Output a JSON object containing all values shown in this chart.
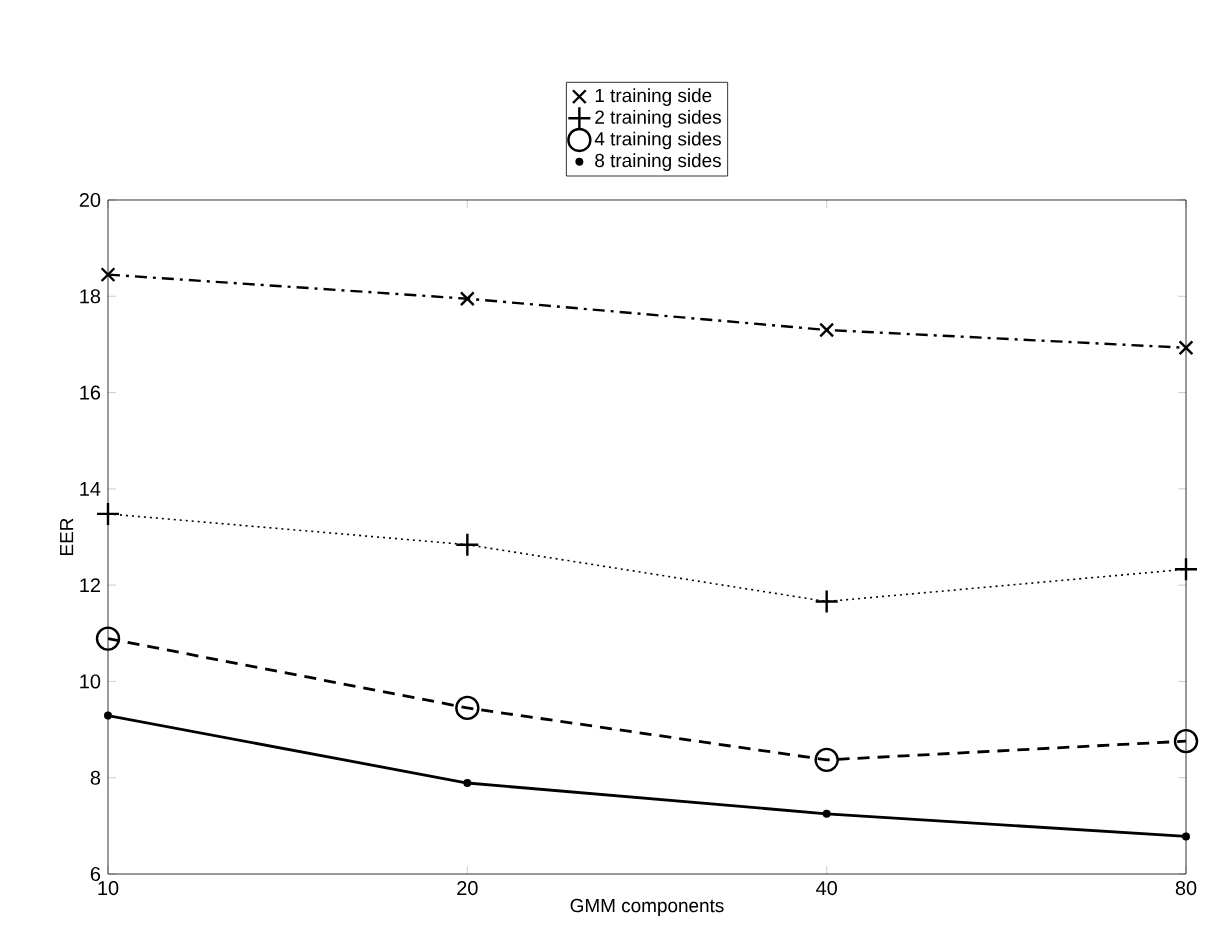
{
  "chart_data": {
    "type": "line",
    "xlabel": "GMM components",
    "ylabel": "EER",
    "categories": [
      "10",
      "20",
      "40",
      "80"
    ],
    "ylim": [
      6,
      20
    ],
    "yticks": [
      6,
      8,
      10,
      12,
      14,
      16,
      18,
      20
    ],
    "legend": "top",
    "grid": false,
    "series": [
      {
        "name": "1 training side",
        "color": "#000000",
        "marker": "cross",
        "line_style": "dashdot",
        "values": [
          18.45,
          17.95,
          17.3,
          16.93
        ]
      },
      {
        "name": "2 training sides",
        "color": "#000000",
        "marker": "plus",
        "line_style": "dotted",
        "values": [
          13.48,
          12.84,
          11.66,
          12.33
        ]
      },
      {
        "name": "4 training sides",
        "color": "#000000",
        "marker": "circle",
        "line_style": "dashed",
        "values": [
          10.89,
          9.45,
          8.37,
          8.76
        ]
      },
      {
        "name": "8 training sides",
        "color": "#000000",
        "marker": "dot",
        "line_style": "solid",
        "values": [
          9.29,
          7.89,
          7.25,
          6.78
        ]
      }
    ]
  }
}
